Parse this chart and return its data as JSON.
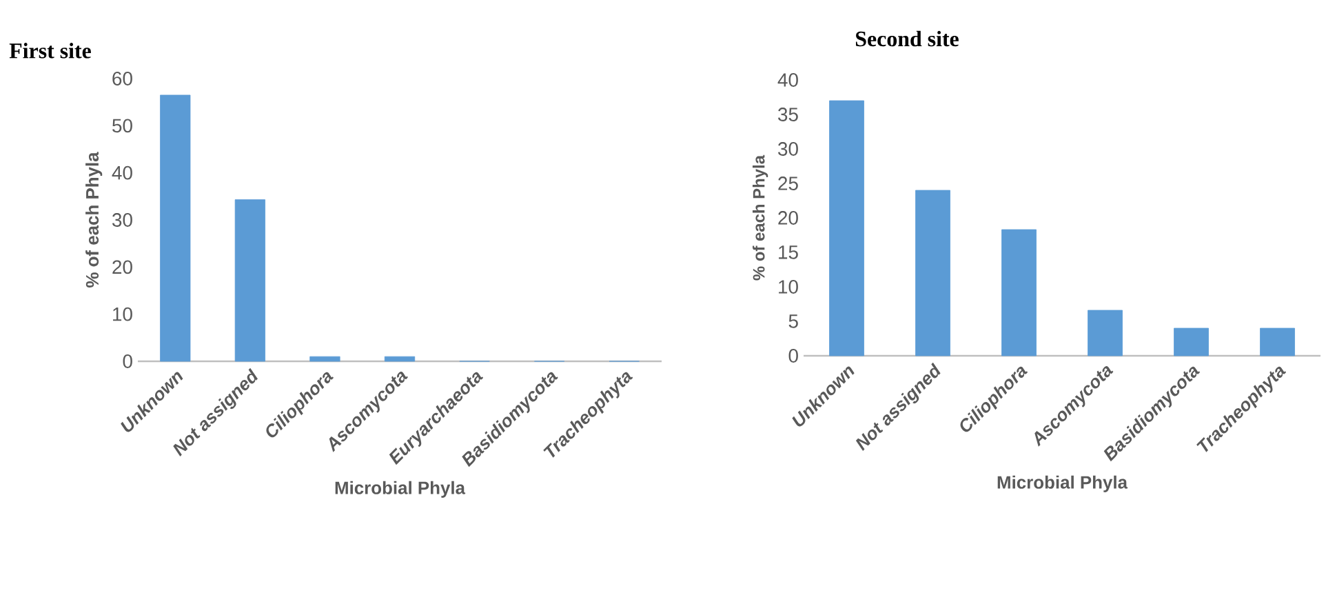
{
  "chart_data": [
    {
      "type": "bar",
      "title": "First site",
      "xlabel": "Microbial Phyla",
      "ylabel": "% of each Phyla",
      "categories": [
        "Unknown",
        "Not assigned",
        "Ciliophora",
        "Ascomycota",
        "Euryarchaeota",
        "Basidiomycota",
        "Tracheophyta"
      ],
      "values": [
        56.5,
        34.3,
        1,
        1,
        0,
        0,
        0
      ],
      "color": "#5b9bd5",
      "ylim": [
        0,
        60
      ],
      "yticks": [
        0,
        10,
        20,
        30,
        40,
        50,
        60
      ]
    },
    {
      "type": "bar",
      "title": "Second site",
      "xlabel": "Microbial Phyla",
      "ylabel": "% of each Phyla",
      "categories": [
        "Unknown",
        "Not assigned",
        "Ciliophora",
        "Ascomycota",
        "Basidiomycota",
        "Tracheophyta"
      ],
      "values": [
        37,
        24,
        18.3,
        6.6,
        4,
        4
      ],
      "color": "#5b9bd5",
      "ylim": [
        0,
        40
      ],
      "yticks": [
        0,
        5,
        10,
        15,
        20,
        25,
        30,
        35,
        40
      ]
    }
  ]
}
